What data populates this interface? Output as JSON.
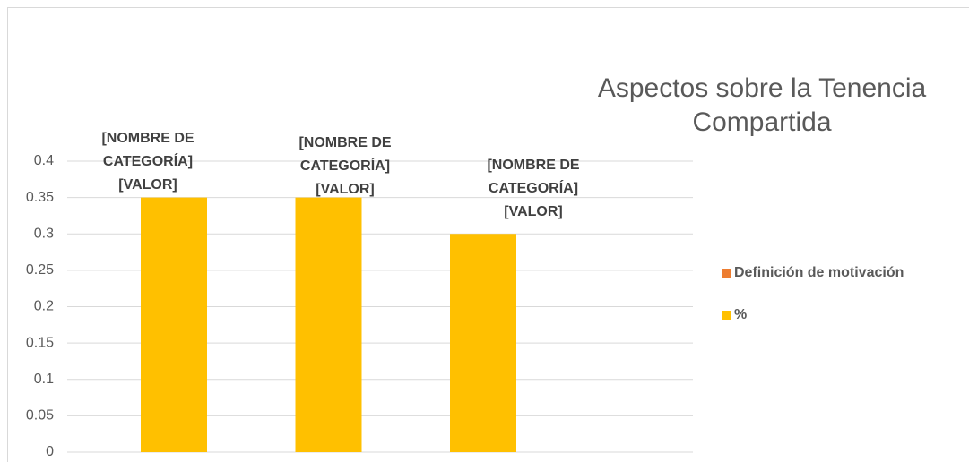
{
  "chart_data": {
    "type": "bar",
    "title": [
      "Aspectos sobre la Tenencia",
      "Compartida"
    ],
    "categories": [
      null,
      null,
      null
    ],
    "series": [
      {
        "name": "Definición de motivación",
        "color": "#ed7d31",
        "values": [
          null,
          null,
          null
        ]
      },
      {
        "name": "%",
        "color": "#ffc000",
        "values": [
          0.35,
          0.35,
          0.3
        ],
        "value_labels": [
          [
            "[NOMBRE DE",
            "CATEGORÍA]",
            "[VALOR]"
          ],
          [
            "[NOMBRE DE",
            "CATEGORÍA]",
            "[VALOR]"
          ],
          [
            "[NOMBRE DE",
            "CATEGORÍA]",
            "[VALOR]"
          ]
        ]
      }
    ],
    "ylim": [
      0,
      0.4
    ],
    "yticks": [
      0,
      0.05,
      0.1,
      0.15,
      0.2,
      0.25,
      0.3,
      0.35,
      0.4
    ],
    "grid": true,
    "legend": "right"
  }
}
